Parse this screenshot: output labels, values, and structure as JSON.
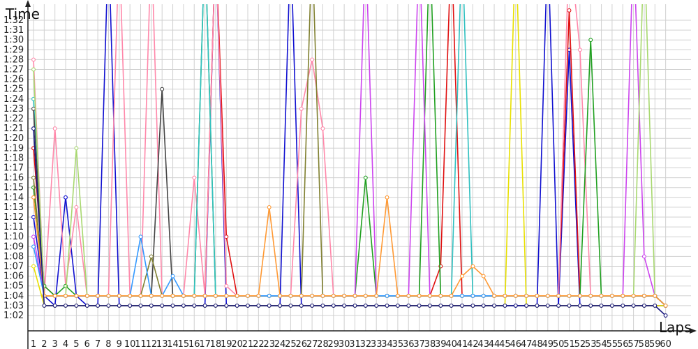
{
  "chart_data": {
    "type": "line",
    "title": "",
    "xlabel": "Laps",
    "ylabel": "Time",
    "xlim": [
      1,
      60
    ],
    "ylim": [
      "1:01",
      "1:33"
    ],
    "grid": true,
    "x_ticks": [
      "1",
      "2",
      "3",
      "4",
      "5",
      "6",
      "7",
      "8",
      "9",
      "10",
      "11",
      "12",
      "13",
      "14",
      "15",
      "16",
      "17",
      "18",
      "19",
      "20",
      "21",
      "22",
      "23",
      "24",
      "25",
      "26",
      "27",
      "28",
      "29",
      "30",
      "31",
      "32",
      "33",
      "34",
      "35",
      "36",
      "37",
      "38",
      "39",
      "40",
      "41",
      "42",
      "43",
      "44",
      "45",
      "46",
      "47",
      "48",
      "49",
      "50",
      "51",
      "52",
      "53",
      "54",
      "55",
      "56",
      "57",
      "58",
      "59",
      "60"
    ],
    "y_ticks": [
      "1:02",
      "1:03",
      "1:04",
      "1:05",
      "1:06",
      "1:07",
      "1:08",
      "1:09",
      "1:10",
      "1:11",
      "1:12",
      "1:13",
      "1:14",
      "1:15",
      "1:16",
      "1:17",
      "1:18",
      "1:19",
      "1:20",
      "1:21",
      "1:22",
      "1:23",
      "1:24",
      "1:25",
      "1:26",
      "1:27",
      "1:28",
      "1:29",
      "1:30",
      "1:31",
      "1:32"
    ],
    "series": [
      {
        "color": "#1010d0",
        "values": [
          "1:12",
          "1:04",
          "1:03",
          "1:14",
          "1:04",
          "1:03",
          "1:03",
          "1:40",
          "1:03",
          "1:03",
          "1:03",
          "1:03",
          "1:03",
          "1:03",
          "1:03",
          "1:03",
          "1:03",
          "1:40",
          "1:03",
          "1:03",
          "1:03",
          "1:03",
          "1:03",
          "1:03",
          "1:40",
          "1:03",
          "1:03",
          "1:03",
          "1:03",
          "1:03",
          "1:03",
          "1:03",
          "1:03",
          "1:03",
          "1:03",
          "1:03",
          "1:03",
          "1:03",
          "1:03",
          "1:03",
          "1:03",
          "1:03",
          "1:03",
          "1:03",
          "1:03",
          "1:03",
          "1:03",
          "1:03",
          "1:40",
          "1:03",
          "1:29",
          "1:03",
          "1:03",
          "1:03",
          "1:03",
          "1:03",
          "1:03",
          "1:03",
          "1:03",
          "1:03"
        ]
      },
      {
        "color": "#e01010",
        "values": [
          "1:19",
          "1:05",
          "1:04",
          "1:04",
          "1:04",
          "1:04",
          "1:04",
          "1:04",
          "1:04",
          "1:04",
          "1:04",
          "1:04",
          "1:04",
          "1:04",
          "1:04",
          "1:04",
          "1:04",
          "1:40",
          "1:10",
          "1:04",
          "1:04",
          "1:04",
          "1:04",
          "1:04",
          "1:04",
          "1:04",
          "1:04",
          "1:04",
          "1:04",
          "1:04",
          "1:04",
          "1:04",
          "1:04",
          "1:04",
          "1:04",
          "1:04",
          "1:04",
          "1:04",
          "1:07",
          "1:40",
          "1:04",
          "1:04",
          "1:04",
          "1:04",
          "1:04",
          "1:04",
          "1:04",
          "1:04",
          "1:04",
          "1:04",
          "1:33",
          "1:04",
          "1:04",
          "1:04",
          "1:04",
          "1:04",
          "1:04",
          "1:04",
          "1:04",
          "1:03"
        ]
      },
      {
        "color": "#ff88aa",
        "values": [
          "1:28",
          "1:04",
          "1:21",
          "1:05",
          "1:13",
          "1:04",
          "1:04",
          "1:04",
          "1:40",
          "1:04",
          "1:04",
          "1:40",
          "1:04",
          "1:04",
          "1:04",
          "1:16",
          "1:04",
          "1:40",
          "1:05",
          "1:04",
          "1:04",
          "1:04",
          "1:04",
          "1:04",
          "1:04",
          "1:23",
          "1:28",
          "1:21",
          "1:04",
          "1:04",
          "1:04",
          "1:04",
          "1:04",
          "1:04",
          "1:04",
          "1:04",
          "1:04",
          "1:04",
          "1:04",
          "1:04",
          "1:04",
          "1:04",
          "1:04",
          "1:04",
          "1:04",
          "1:04",
          "1:04",
          "1:04",
          "1:04",
          "1:04",
          "1:40",
          "1:29",
          "1:04",
          "1:04",
          "1:04",
          "1:04",
          "1:04",
          "1:04",
          "1:04",
          "1:03"
        ]
      },
      {
        "color": "#20a020",
        "values": [
          "1:15",
          "1:05",
          "1:04",
          "1:05",
          "1:04",
          "1:04",
          "1:04",
          "1:04",
          "1:04",
          "1:04",
          "1:04",
          "1:04",
          "1:04",
          "1:04",
          "1:04",
          "1:04",
          "1:40",
          "1:04",
          "1:04",
          "1:04",
          "1:04",
          "1:04",
          "1:04",
          "1:04",
          "1:04",
          "1:04",
          "1:04",
          "1:04",
          "1:04",
          "1:04",
          "1:04",
          "1:16",
          "1:04",
          "1:04",
          "1:04",
          "1:04",
          "1:04",
          "1:40",
          "1:04",
          "1:04",
          "1:04",
          "1:04",
          "1:04",
          "1:04",
          "1:04",
          "1:04",
          "1:04",
          "1:04",
          "1:04",
          "1:04",
          "1:04",
          "1:04",
          "1:30",
          "1:04",
          "1:04",
          "1:04",
          "1:04",
          "1:04",
          "1:04",
          "1:03"
        ]
      },
      {
        "color": "#30c0c0",
        "values": [
          "1:24",
          "1:04",
          "1:04",
          "1:04",
          "1:04",
          "1:04",
          "1:04",
          "1:04",
          "1:04",
          "1:04",
          "1:04",
          "1:04",
          "1:04",
          "1:04",
          "1:04",
          "1:04",
          "1:40",
          "1:04",
          "1:04",
          "1:04",
          "1:04",
          "1:04",
          "1:04",
          "1:04",
          "1:04",
          "1:04",
          "1:04",
          "1:04",
          "1:04",
          "1:04",
          "1:04",
          "1:04",
          "1:04",
          "1:04",
          "1:04",
          "1:04",
          "1:04",
          "1:04",
          "1:04",
          "1:04",
          "1:40",
          "1:04",
          "1:04",
          "1:04",
          "1:04",
          "1:04",
          "1:04",
          "1:04",
          "1:04",
          "1:04",
          "1:04",
          "1:04",
          "1:04",
          "1:04",
          "1:04",
          "1:04",
          "1:04",
          "1:04",
          "1:04",
          "1:03"
        ]
      },
      {
        "color": "#cc44ee",
        "values": [
          "1:10",
          "1:04",
          "1:04",
          "1:04",
          "1:04",
          "1:04",
          "1:04",
          "1:04",
          "1:04",
          "1:04",
          "1:04",
          "1:04",
          "1:04",
          "1:04",
          "1:04",
          "1:04",
          "1:04",
          "1:04",
          "1:04",
          "1:04",
          "1:04",
          "1:04",
          "1:04",
          "1:04",
          "1:04",
          "1:04",
          "1:04",
          "1:04",
          "1:04",
          "1:04",
          "1:04",
          "1:40",
          "1:04",
          "1:04",
          "1:04",
          "1:04",
          "1:40",
          "1:04",
          "1:04",
          "1:04",
          "1:04",
          "1:04",
          "1:04",
          "1:04",
          "1:04",
          "1:04",
          "1:04",
          "1:04",
          "1:04",
          "1:04",
          "1:04",
          "1:04",
          "1:04",
          "1:04",
          "1:04",
          "1:04",
          "1:40",
          "1:08",
          "1:04",
          "1:03"
        ]
      },
      {
        "color": "#e8e000",
        "values": [
          "1:07",
          "1:03",
          "1:03",
          "1:03",
          "1:03",
          "1:03",
          "1:03",
          "1:03",
          "1:03",
          "1:03",
          "1:03",
          "1:03",
          "1:03",
          "1:03",
          "1:03",
          "1:03",
          "1:03",
          "1:03",
          "1:03",
          "1:03",
          "1:03",
          "1:03",
          "1:03",
          "1:03",
          "1:03",
          "1:03",
          "1:03",
          "1:03",
          "1:03",
          "1:03",
          "1:03",
          "1:03",
          "1:03",
          "1:03",
          "1:03",
          "1:03",
          "1:03",
          "1:03",
          "1:03",
          "1:03",
          "1:03",
          "1:03",
          "1:03",
          "1:03",
          "1:03",
          "1:40",
          "1:03",
          "1:03",
          "1:03",
          "1:03",
          "1:03",
          "1:03",
          "1:03",
          "1:03",
          "1:03",
          "1:03",
          "1:03",
          "1:03",
          "1:03",
          "1:03"
        ]
      },
      {
        "color": "#444444",
        "values": [
          "1:23",
          "1:04",
          "1:04",
          "1:04",
          "1:04",
          "1:04",
          "1:04",
          "1:04",
          "1:04",
          "1:04",
          "1:04",
          "1:04",
          "1:25",
          "1:04",
          "1:04",
          "1:04",
          "1:04",
          "1:04",
          "1:04",
          "1:04",
          "1:04",
          "1:04",
          "1:04",
          "1:04",
          "1:04",
          "1:04",
          "1:04",
          "1:04",
          "1:04",
          "1:04",
          "1:04",
          "1:04",
          "1:04",
          "1:04",
          "1:04",
          "1:04",
          "1:04",
          "1:04",
          "1:04",
          "1:04",
          "1:04",
          "1:04",
          "1:04",
          "1:04",
          "1:04",
          "1:04",
          "1:04",
          "1:04",
          "1:04",
          "1:04",
          "1:04",
          "1:04",
          "1:04",
          "1:04",
          "1:04",
          "1:04",
          "1:04",
          "1:04",
          "1:04",
          "1:03"
        ]
      },
      {
        "color": "#a8d870",
        "values": [
          "1:27",
          "1:04",
          "1:04",
          "1:04",
          "1:19",
          "1:04",
          "1:04",
          "1:04",
          "1:04",
          "1:04",
          "1:04",
          "1:04",
          "1:04",
          "1:04",
          "1:04",
          "1:04",
          "1:04",
          "1:04",
          "1:04",
          "1:04",
          "1:04",
          "1:04",
          "1:04",
          "1:04",
          "1:04",
          "1:04",
          "1:04",
          "1:04",
          "1:04",
          "1:04",
          "1:04",
          "1:04",
          "1:04",
          "1:04",
          "1:04",
          "1:04",
          "1:04",
          "1:04",
          "1:04",
          "1:04",
          "1:04",
          "1:04",
          "1:04",
          "1:04",
          "1:04",
          "1:04",
          "1:04",
          "1:04",
          "1:04",
          "1:04",
          "1:04",
          "1:04",
          "1:04",
          "1:04",
          "1:04",
          "1:04",
          "1:04",
          "1:40",
          "1:04",
          "1:03"
        ]
      },
      {
        "color": "#808030",
        "values": [
          "1:16",
          "1:04",
          "1:04",
          "1:04",
          "1:04",
          "1:04",
          "1:04",
          "1:04",
          "1:04",
          "1:04",
          "1:04",
          "1:08",
          "1:04",
          "1:04",
          "1:04",
          "1:04",
          "1:04",
          "1:04",
          "1:04",
          "1:04",
          "1:04",
          "1:04",
          "1:04",
          "1:04",
          "1:04",
          "1:04",
          "1:40",
          "1:04",
          "1:04",
          "1:04",
          "1:04",
          "1:04",
          "1:04",
          "1:04",
          "1:04",
          "1:04",
          "1:04",
          "1:04",
          "1:04",
          "1:04",
          "1:04",
          "1:04",
          "1:04",
          "1:04",
          "1:04",
          "1:04",
          "1:04",
          "1:04",
          "1:04",
          "1:04",
          "1:04",
          "1:04",
          "1:04",
          "1:04",
          "1:04",
          "1:04",
          "1:04",
          "1:04",
          "1:04",
          "1:03"
        ]
      },
      {
        "color": "#3399ff",
        "values": [
          "1:09",
          "1:04",
          "1:04",
          "1:04",
          "1:04",
          "1:04",
          "1:04",
          "1:04",
          "1:04",
          "1:04",
          "1:10",
          "1:04",
          "1:04",
          "1:06",
          "1:04",
          "1:04",
          "1:04",
          "1:04",
          "1:04",
          "1:04",
          "1:04",
          "1:04",
          "1:04",
          "1:04",
          "1:04",
          "1:04",
          "1:04",
          "1:04",
          "1:04",
          "1:04",
          "1:04",
          "1:04",
          "1:04",
          "1:04",
          "1:04",
          "1:04",
          "1:04",
          "1:04",
          "1:04",
          "1:04",
          "1:04",
          "1:04",
          "1:04",
          "1:04",
          "1:04",
          "1:04",
          "1:04",
          "1:04",
          "1:04",
          "1:04",
          "1:04",
          "1:04",
          "1:04",
          "1:04",
          "1:04",
          "1:04",
          "1:04",
          "1:04",
          "1:04",
          "1:03"
        ]
      },
      {
        "color": "#ff9933",
        "values": [
          "1:14",
          "1:04",
          "1:04",
          "1:04",
          "1:04",
          "1:04",
          "1:04",
          "1:04",
          "1:04",
          "1:04",
          "1:04",
          "1:04",
          "1:04",
          "1:04",
          "1:04",
          "1:04",
          "1:04",
          "1:04",
          "1:04",
          "1:04",
          "1:04",
          "1:04",
          "1:13",
          "1:04",
          "1:04",
          "1:04",
          "1:04",
          "1:04",
          "1:04",
          "1:04",
          "1:04",
          "1:04",
          "1:04",
          "1:14",
          "1:04",
          "1:04",
          "1:04",
          "1:04",
          "1:04",
          "1:04",
          "1:06",
          "1:07",
          "1:06",
          "1:04",
          "1:04",
          "1:04",
          "1:04",
          "1:04",
          "1:04",
          "1:04",
          "1:04",
          "1:04",
          "1:04",
          "1:04",
          "1:04",
          "1:04",
          "1:04",
          "1:04",
          "1:04",
          "1:03"
        ]
      },
      {
        "color": "#1a1a80",
        "values": [
          "1:21",
          "1:03",
          "1:03",
          "1:03",
          "1:03",
          "1:03",
          "1:03",
          "1:03",
          "1:03",
          "1:03",
          "1:03",
          "1:03",
          "1:03",
          "1:03",
          "1:03",
          "1:03",
          "1:03",
          "1:03",
          "1:03",
          "1:03",
          "1:03",
          "1:03",
          "1:03",
          "1:03",
          "1:03",
          "1:03",
          "1:03",
          "1:03",
          "1:03",
          "1:03",
          "1:03",
          "1:03",
          "1:03",
          "1:03",
          "1:03",
          "1:03",
          "1:03",
          "1:03",
          "1:03",
          "1:03",
          "1:03",
          "1:03",
          "1:03",
          "1:03",
          "1:03",
          "1:03",
          "1:03",
          "1:03",
          "1:03",
          "1:03",
          "1:03",
          "1:03",
          "1:03",
          "1:03",
          "1:03",
          "1:03",
          "1:03",
          "1:03",
          "1:03",
          "1:02"
        ]
      }
    ]
  }
}
